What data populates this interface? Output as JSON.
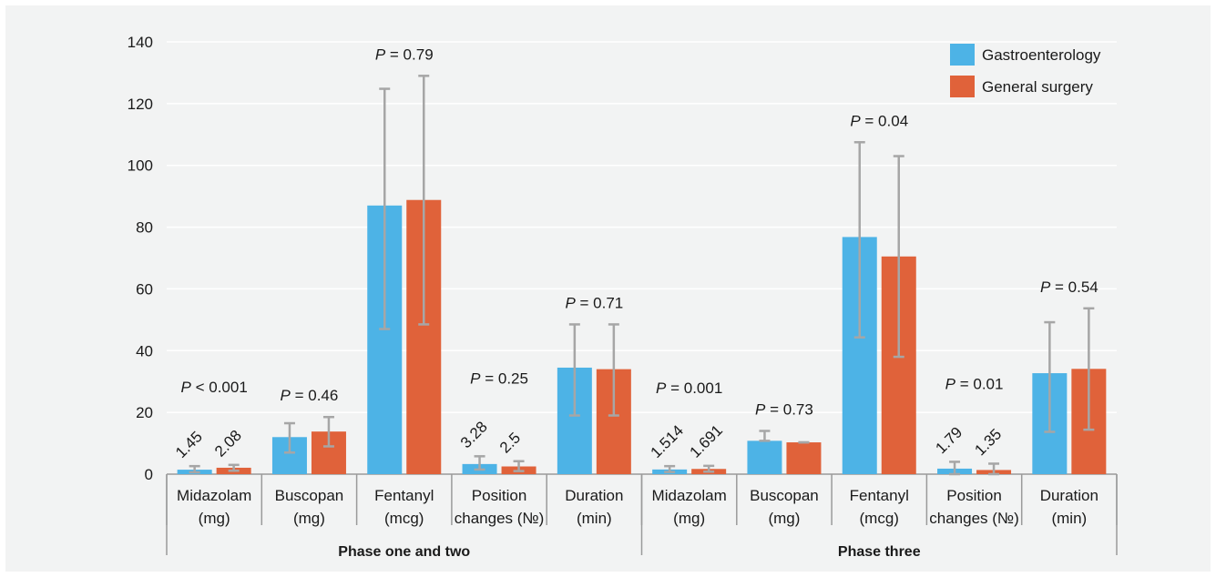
{
  "chart_data": {
    "type": "bar",
    "ylim": [
      0,
      140
    ],
    "yticks": [
      "0",
      "20",
      "40",
      "60",
      "80",
      "100",
      "120",
      "140"
    ],
    "grid": true,
    "legend_position": "top-right",
    "colors": {
      "Gastroenterology": "#4db3e6",
      "General surgery": "#e0623a",
      "error_bar": "#a6a6a6",
      "grid": "#ffffff",
      "axis": "#9a9a9a"
    },
    "groups": [
      {
        "name": "Phase one and two",
        "categories": [
          {
            "lines": [
              "Midazolam",
              "(mg)"
            ],
            "p": "P < 0.001",
            "values": [
              1.45,
              2.08
            ],
            "err_low": [
              0.6,
              1.1
            ],
            "err_high": [
              2.6,
              3.0
            ],
            "labels": [
              "1.45",
              "2.08"
            ]
          },
          {
            "lines": [
              "Buscopan",
              "(mg)"
            ],
            "p": "P = 0.46",
            "values": [
              12.0,
              13.8
            ],
            "err_low": [
              7.0,
              9.0
            ],
            "err_high": [
              16.5,
              18.5
            ],
            "labels": []
          },
          {
            "lines": [
              "Fentanyl",
              "(mcg)"
            ],
            "p": "P = 0.79",
            "values": [
              87.0,
              88.8
            ],
            "err_low": [
              47.0,
              48.5
            ],
            "err_high": [
              124.8,
              129.0
            ],
            "labels": []
          },
          {
            "lines": [
              "Position",
              "changes (№)"
            ],
            "p": "P = 0.25",
            "values": [
              3.28,
              2.5
            ],
            "err_low": [
              1.5,
              1.0
            ],
            "err_high": [
              5.8,
              4.2
            ],
            "labels": [
              "3.28",
              "2.5"
            ]
          },
          {
            "lines": [
              "Duration",
              "(min)"
            ],
            "p": "P = 0.71",
            "values": [
              34.5,
              34.0
            ],
            "err_low": [
              19.0,
              19.0
            ],
            "err_high": [
              48.5,
              48.5
            ],
            "labels": []
          }
        ]
      },
      {
        "name": "Phase three",
        "categories": [
          {
            "lines": [
              "Midazolam",
              "(mg)"
            ],
            "p": "P = 0.001",
            "values": [
              1.514,
              1.691
            ],
            "err_low": [
              0.7,
              0.8
            ],
            "err_high": [
              2.6,
              2.7
            ],
            "labels": [
              "1.514",
              "1.691"
            ]
          },
          {
            "lines": [
              "Buscopan",
              "(mg)"
            ],
            "p": "P = 0.73",
            "values": [
              10.8,
              10.3
            ],
            "err_low": [
              10.8,
              10.3
            ],
            "err_high": [
              14.0,
              10.3
            ],
            "labels": []
          },
          {
            "lines": [
              "Fentanyl",
              "(mcg)"
            ],
            "p": "P = 0.04",
            "values": [
              76.8,
              70.5
            ],
            "err_low": [
              44.3,
              38.0
            ],
            "err_high": [
              107.5,
              103.0
            ],
            "labels": []
          },
          {
            "lines": [
              "Position",
              "changes (№)"
            ],
            "p": "P = 0.01",
            "values": [
              1.79,
              1.35
            ],
            "err_low": [
              0.0,
              0.0
            ],
            "err_high": [
              4.0,
              3.4
            ],
            "labels": [
              "1.79",
              "1.35"
            ]
          },
          {
            "lines": [
              "Duration",
              "(min)"
            ],
            "p": "P = 0.54",
            "values": [
              32.7,
              34.1
            ],
            "err_low": [
              13.7,
              14.4
            ],
            "err_high": [
              49.2,
              53.7
            ],
            "labels": []
          }
        ]
      }
    ],
    "series": [
      {
        "name": "Gastroenterology"
      },
      {
        "name": "General surgery"
      }
    ]
  }
}
